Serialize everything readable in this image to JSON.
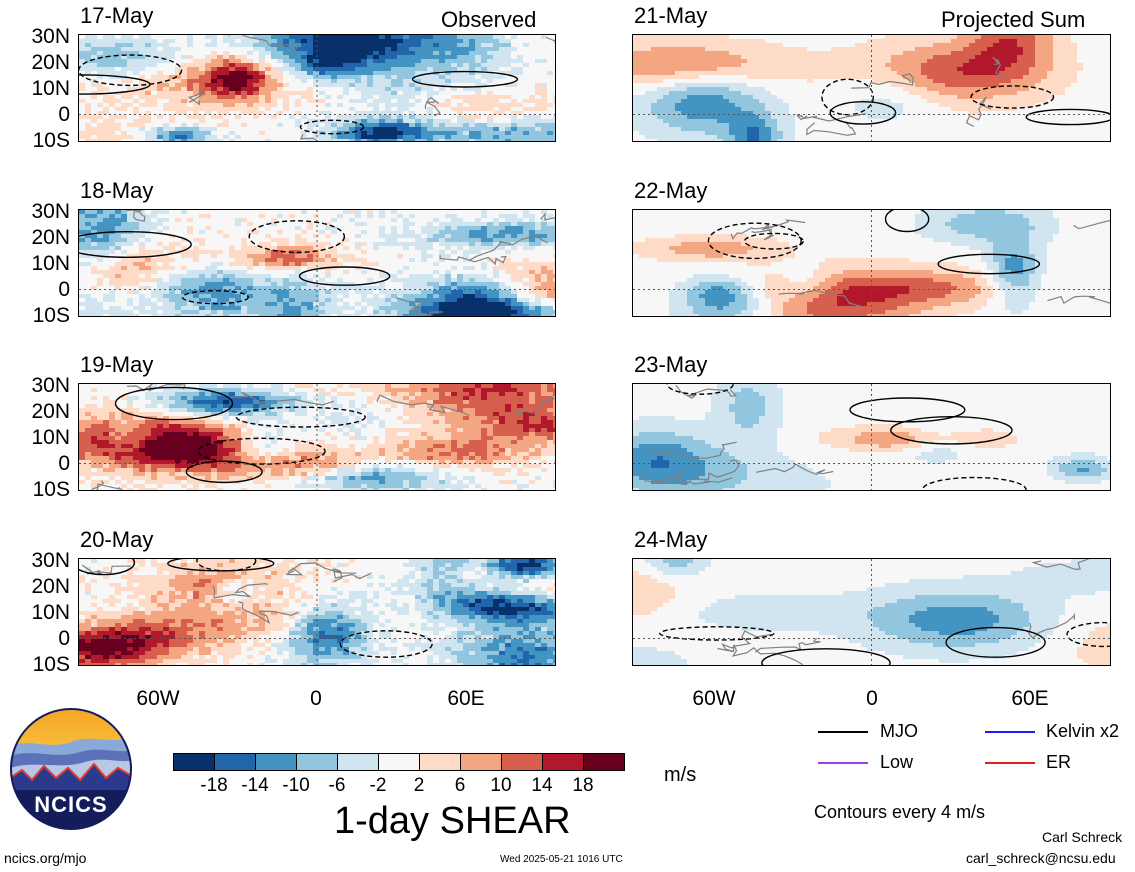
{
  "header": {
    "observed_label": "Observed",
    "projected_label": "Projected Sum"
  },
  "observed_dates": [
    "17-May",
    "18-May",
    "19-May",
    "20-May"
  ],
  "projected_dates": [
    "21-May",
    "22-May",
    "23-May",
    "24-May"
  ],
  "lat_labels": [
    "30N",
    "20N",
    "10N",
    "0",
    "10S"
  ],
  "lon_labels": [
    "60W",
    "0",
    "60E"
  ],
  "colorbar": {
    "ticks": [
      "-18",
      "-14",
      "-10",
      "-6",
      "-2",
      "2",
      "6",
      "10",
      "14",
      "18"
    ],
    "colors": [
      "#08306b",
      "#2166ac",
      "#4393c3",
      "#92c5de",
      "#d1e5f0",
      "#f7f7f7",
      "#fddbc7",
      "#f4a582",
      "#d6604d",
      "#b2182b",
      "#67001f"
    ],
    "units": "m/s",
    "title": "1-day SHEAR"
  },
  "legend": {
    "items": [
      {
        "label": "MJO",
        "color": "#000000"
      },
      {
        "label": "Kelvin x2",
        "color": "#1a1aff"
      },
      {
        "label": "Low",
        "color": "#a040e0"
      },
      {
        "label": "ER",
        "color": "#e02020"
      }
    ],
    "contour_note": "Contours every 4 m/s"
  },
  "logo": {
    "text": "NCICS"
  },
  "footer": {
    "url": "ncics.org/mjo",
    "timestamp": "Wed 2025-05-21 1016 UTC",
    "author": "Carl Schreck",
    "email": "carl_schreck@ncsu.edu"
  }
}
